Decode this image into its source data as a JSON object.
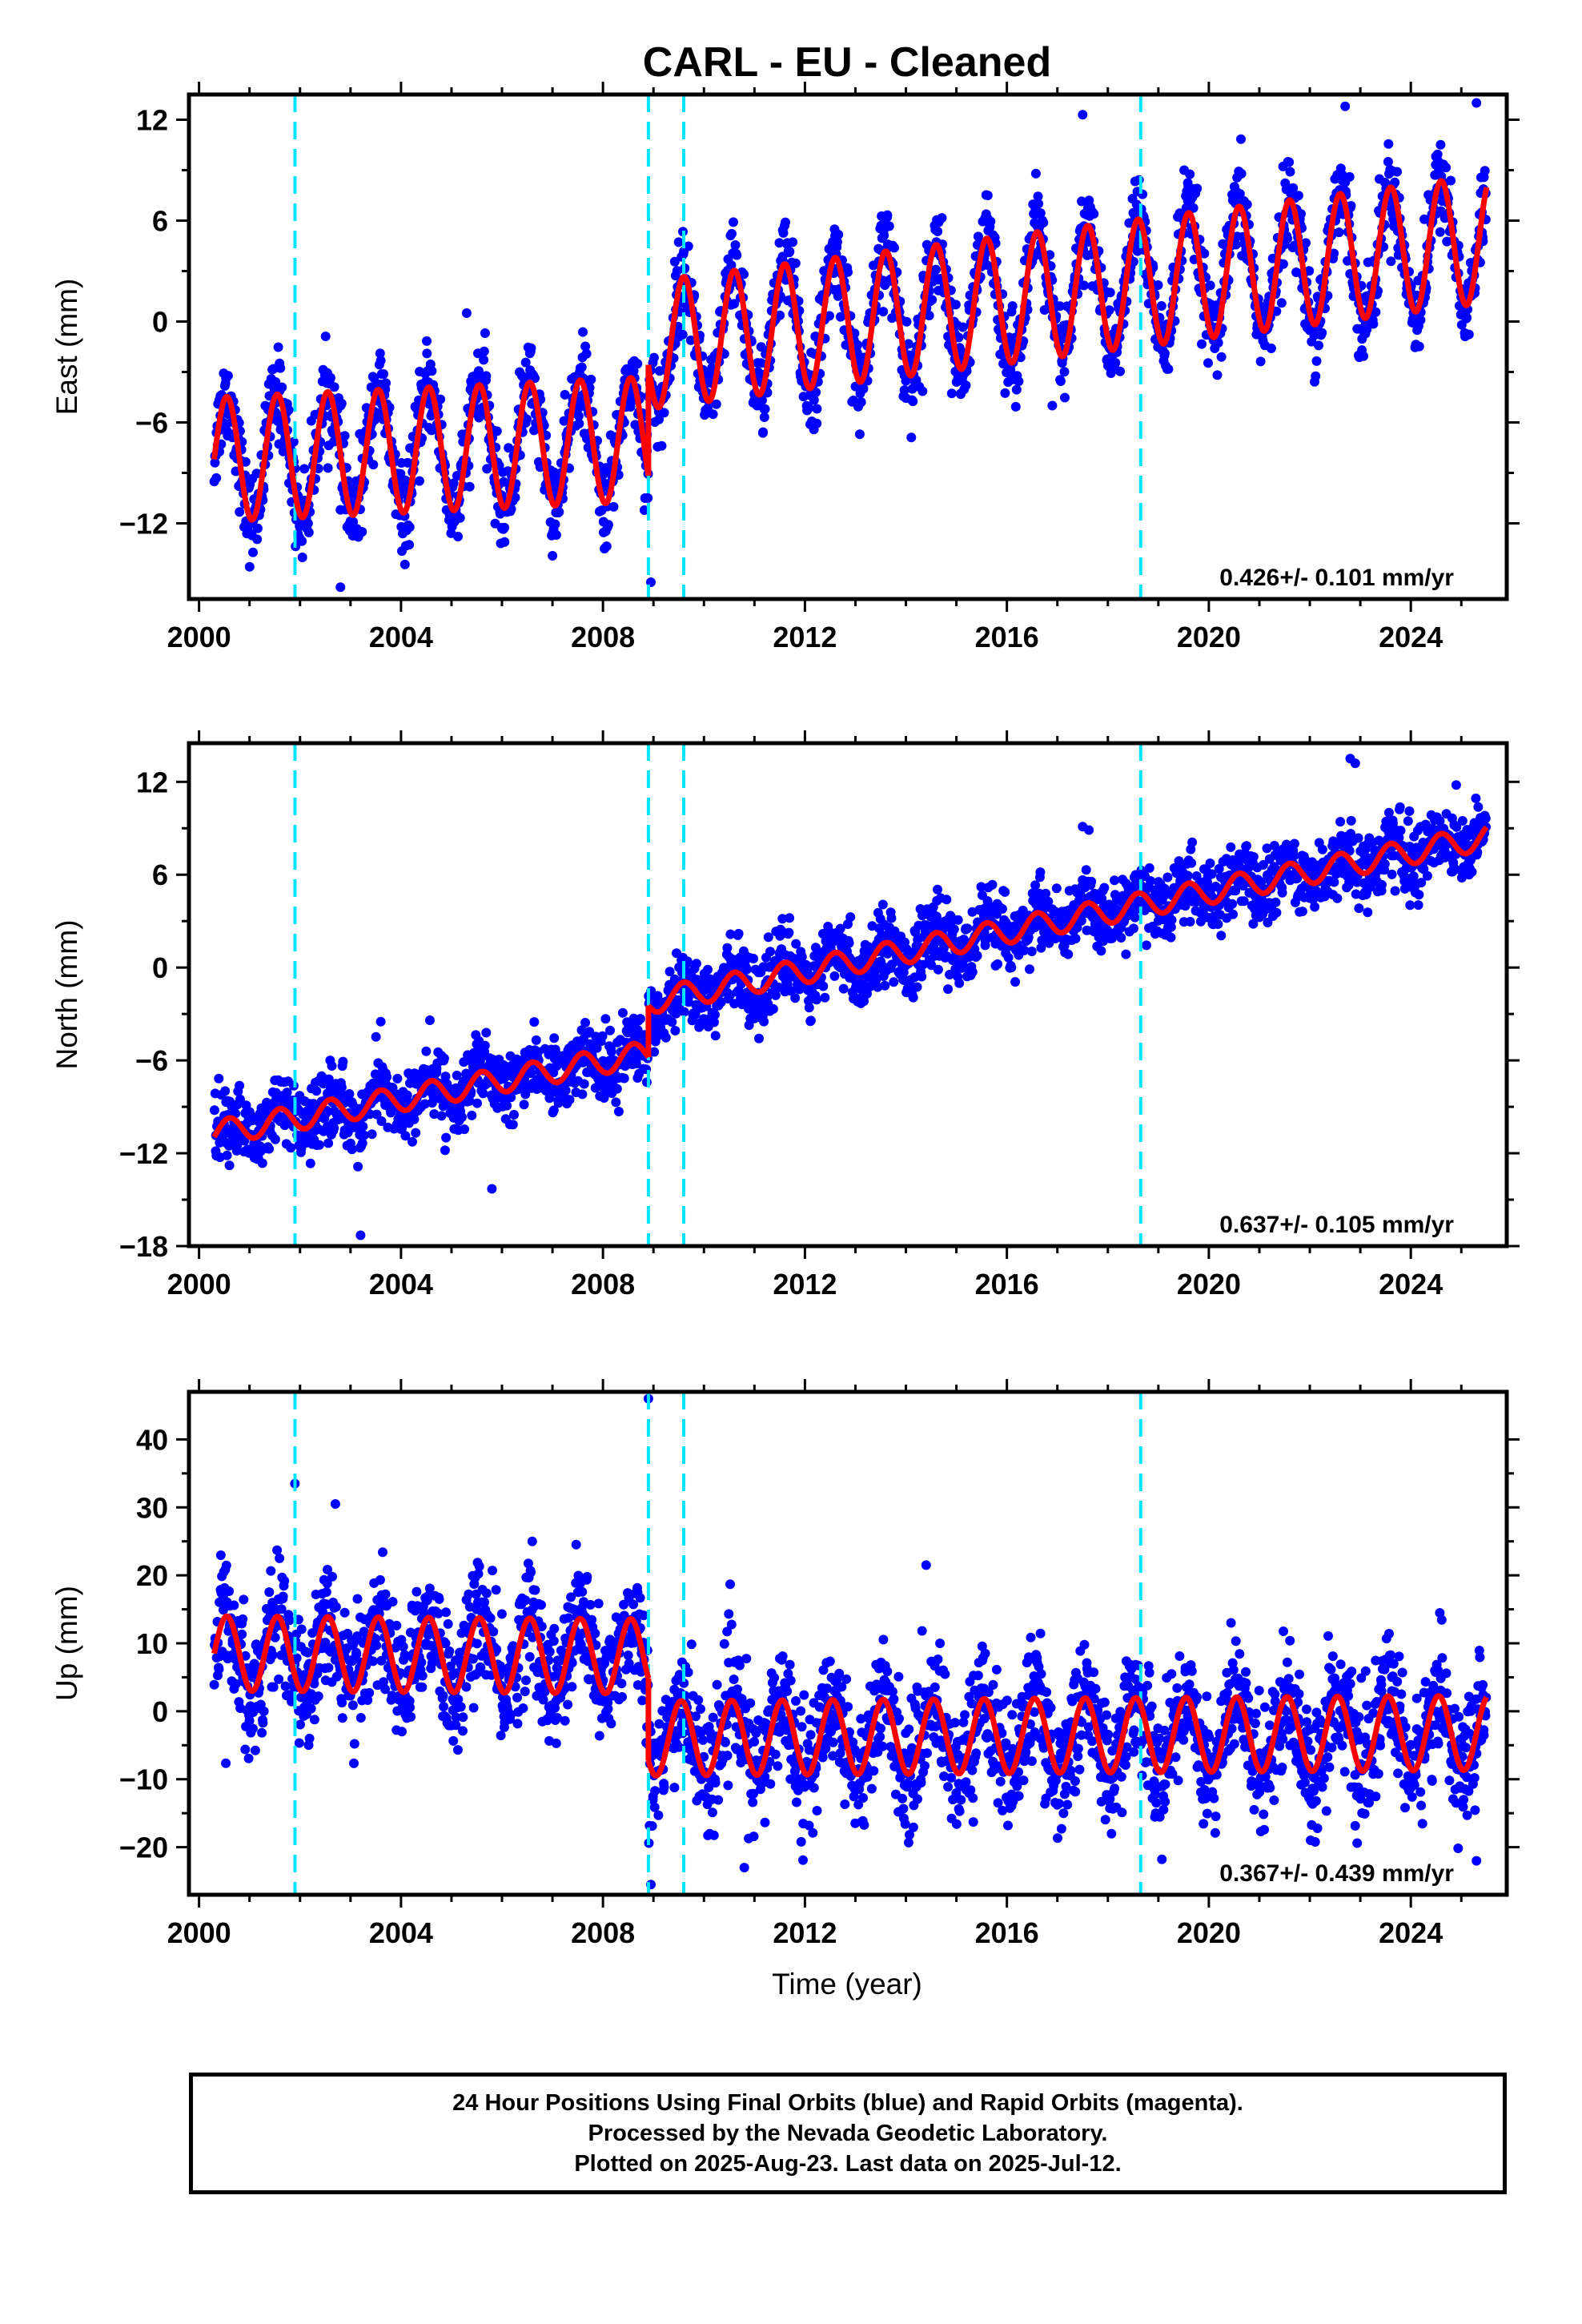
{
  "title": "CARL  - EU - Cleaned",
  "xlabel": "Time (year)",
  "footer": {
    "line1": "24 Hour Positions Using Final Orbits (blue) and Rapid Orbits (magenta).",
    "line2": "Processed by the Nevada Geodetic Laboratory.",
    "line3": "Plotted on 2025-Aug-23. Last data on 2025-Jul-12."
  },
  "colors": {
    "data": "#0000ff",
    "model": "#ff0000",
    "breaks": "#00e5ff",
    "frame": "#000000"
  },
  "chart_data": [
    {
      "type": "scatter",
      "ylabel": "East (mm)",
      "xlim": [
        1999.8,
        2025.9
      ],
      "ylim": [
        -16.5,
        13.5
      ],
      "yticks": [
        -12,
        -6,
        0,
        6,
        12
      ],
      "xticks": [
        2000,
        2004,
        2008,
        2012,
        2016,
        2020,
        2024
      ],
      "rate_label": "0.426+/- 0.101 mm/yr",
      "data_range": [
        2000.3,
        2025.5
      ],
      "break_years": [
        2001.9,
        2008.9,
        2009.6,
        2018.65
      ],
      "model": {
        "segments": [
          {
            "start": 2000.3,
            "end": 2008.9,
            "trend_at_start": -8.2,
            "slope": 0.14,
            "amplitude": 3.7,
            "phase_year": 2000.55
          },
          {
            "start": 2008.9,
            "end": 2025.5,
            "trend_at_start": -1.4,
            "slope": 0.38,
            "amplitude": 3.8,
            "phase_year": 2009.6
          }
        ]
      },
      "scatter_sd": 1.3,
      "outliers": [
        [
          2017.5,
          12.3
        ],
        [
          2008.95,
          -15.5
        ],
        [
          2002.8,
          -15.8
        ],
        [
          2005.3,
          0.5
        ],
        [
          2022.7,
          12.8
        ],
        [
          2025.3,
          13.0
        ],
        [
          2016.9,
          -5.0
        ]
      ]
    },
    {
      "type": "scatter",
      "ylabel": "North (mm)",
      "xlim": [
        1999.8,
        2025.9
      ],
      "ylim": [
        -18,
        14.5
      ],
      "yticks": [
        -18,
        -12,
        -6,
        0,
        6,
        12
      ],
      "xticks": [
        2000,
        2004,
        2008,
        2012,
        2016,
        2020,
        2024
      ],
      "rate_label": "0.637+/- 0.105 mm/yr",
      "data_range": [
        2000.3,
        2025.5
      ],
      "break_years": [
        2001.9,
        2008.9,
        2009.6,
        2018.65
      ],
      "model": {
        "segments": [
          {
            "start": 2000.3,
            "end": 2008.9,
            "trend_at_start": -10.7,
            "slope": 0.6,
            "amplitude": 0.8,
            "phase_year": 2000.6
          },
          {
            "start": 2008.9,
            "end": 2025.5,
            "trend_at_start": -2.2,
            "slope": 0.64,
            "amplitude": 0.8,
            "phase_year": 2009.6
          }
        ]
      },
      "scatter_sd": 1.1,
      "outliers": [
        [
          2003.2,
          -17.3
        ],
        [
          2005.8,
          -14.3
        ],
        [
          2022.8,
          13.5
        ],
        [
          2022.9,
          13.2
        ],
        [
          2024.9,
          11.8
        ],
        [
          2017.5,
          9.1
        ],
        [
          2003.6,
          -3.5
        ]
      ]
    },
    {
      "type": "scatter",
      "ylabel": "Up (mm)",
      "xlim": [
        1999.8,
        2025.9
      ],
      "ylim": [
        -27,
        47
      ],
      "yticks": [
        -20,
        -10,
        0,
        10,
        20,
        30,
        40
      ],
      "xticks": [
        2000,
        2004,
        2008,
        2012,
        2016,
        2020,
        2024
      ],
      "rate_label": "0.367+/- 0.439 mm/yr",
      "data_range": [
        2000.3,
        2025.5
      ],
      "break_years": [
        2001.9,
        2008.9,
        2009.6,
        2018.65
      ],
      "model": {
        "segments": [
          {
            "start": 2000.3,
            "end": 2008.9,
            "trend_at_start": 8.5,
            "slope": -0.05,
            "amplitude": 5.5,
            "phase_year": 2000.55
          },
          {
            "start": 2008.9,
            "end": 2025.5,
            "trend_at_start": -4.0,
            "slope": 0.05,
            "amplitude": 5.5,
            "phase_year": 2009.55
          }
        ]
      },
      "scatter_sd": 4.5,
      "outliers": [
        [
          2008.9,
          46
        ],
        [
          2001.9,
          33.5
        ],
        [
          2002.7,
          30.5
        ],
        [
          2006.6,
          25
        ],
        [
          2014.4,
          21.5
        ],
        [
          2008.95,
          -25.5
        ],
        [
          2010.8,
          -23
        ],
        [
          2025.3,
          -22
        ]
      ]
    }
  ]
}
